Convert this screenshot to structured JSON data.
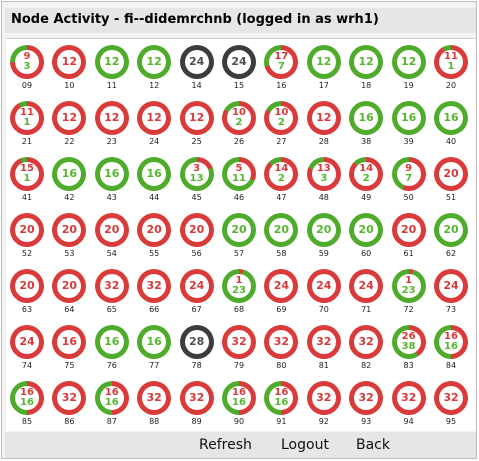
{
  "title": "Node Activity - fi--didemrchnb (logged in as wrh1)",
  "nav": {
    "refresh": "Refresh",
    "logout": "Logout",
    "back": "Back"
  },
  "colors": {
    "red": "#d93a3a",
    "green": "#56b632",
    "dark": "#505050",
    "ring_red": "#d93a3a",
    "ring_green": "#4fab2b",
    "ring_dark": "#3c3c3c"
  },
  "nodes": [
    {
      "id": "09",
      "total": 12,
      "a": 9,
      "b": 3,
      "used": 9,
      "type": "mix"
    },
    {
      "id": "10",
      "total": 12,
      "a": 12,
      "used": 12,
      "type": "red"
    },
    {
      "id": "11",
      "total": 12,
      "a": 12,
      "used": 0,
      "type": "green"
    },
    {
      "id": "12",
      "total": 12,
      "a": 12,
      "used": 0,
      "type": "green"
    },
    {
      "id": "14",
      "total": 24,
      "a": 24,
      "used": 0,
      "type": "dark"
    },
    {
      "id": "15",
      "total": 24,
      "a": 24,
      "used": 0,
      "type": "dark"
    },
    {
      "id": "16",
      "total": 24,
      "a": 17,
      "b": 7,
      "used": 17,
      "type": "mix"
    },
    {
      "id": "17",
      "total": 12,
      "a": 12,
      "used": 0,
      "type": "green"
    },
    {
      "id": "18",
      "total": 12,
      "a": 12,
      "used": 0,
      "type": "green"
    },
    {
      "id": "19",
      "total": 12,
      "a": 12,
      "used": 0,
      "type": "green"
    },
    {
      "id": "20",
      "total": 12,
      "a": 11,
      "b": 1,
      "used": 11,
      "type": "mix"
    },
    {
      "id": "21",
      "total": 12,
      "a": 11,
      "b": 1,
      "used": 11,
      "type": "mix"
    },
    {
      "id": "22",
      "total": 12,
      "a": 12,
      "used": 12,
      "type": "red"
    },
    {
      "id": "23",
      "total": 12,
      "a": 12,
      "used": 12,
      "type": "red"
    },
    {
      "id": "24",
      "total": 12,
      "a": 12,
      "used": 12,
      "type": "red"
    },
    {
      "id": "25",
      "total": 12,
      "a": 12,
      "used": 12,
      "type": "red"
    },
    {
      "id": "26",
      "total": 12,
      "a": 10,
      "b": 2,
      "used": 10,
      "type": "mix"
    },
    {
      "id": "27",
      "total": 12,
      "a": 10,
      "b": 2,
      "used": 10,
      "type": "mix"
    },
    {
      "id": "28",
      "total": 12,
      "a": 12,
      "used": 12,
      "type": "red"
    },
    {
      "id": "38",
      "total": 16,
      "a": 16,
      "used": 0,
      "type": "green"
    },
    {
      "id": "39",
      "total": 16,
      "a": 16,
      "used": 0,
      "type": "green"
    },
    {
      "id": "40",
      "total": 16,
      "a": 16,
      "used": 0,
      "type": "green"
    },
    {
      "id": "41",
      "total": 16,
      "a": 15,
      "b": 1,
      "used": 15,
      "type": "mix"
    },
    {
      "id": "42",
      "total": 16,
      "a": 16,
      "used": 0,
      "type": "green"
    },
    {
      "id": "43",
      "total": 16,
      "a": 16,
      "used": 0,
      "type": "green"
    },
    {
      "id": "44",
      "total": 16,
      "a": 16,
      "used": 0,
      "type": "green"
    },
    {
      "id": "45",
      "total": 16,
      "a": 3,
      "b": 13,
      "used": 3,
      "type": "mix"
    },
    {
      "id": "46",
      "total": 16,
      "a": 5,
      "b": 11,
      "used": 5,
      "type": "mix"
    },
    {
      "id": "47",
      "total": 16,
      "a": 14,
      "b": 2,
      "used": 14,
      "type": "mix"
    },
    {
      "id": "48",
      "total": 16,
      "a": 13,
      "b": 3,
      "used": 13,
      "type": "mix"
    },
    {
      "id": "49",
      "total": 16,
      "a": 14,
      "b": 2,
      "used": 14,
      "type": "mix"
    },
    {
      "id": "50",
      "total": 16,
      "a": 9,
      "b": 7,
      "used": 9,
      "type": "mix"
    },
    {
      "id": "51",
      "total": 20,
      "a": 20,
      "used": 20,
      "type": "red"
    },
    {
      "id": "52",
      "total": 20,
      "a": 20,
      "used": 20,
      "type": "red"
    },
    {
      "id": "53",
      "total": 20,
      "a": 20,
      "used": 20,
      "type": "red"
    },
    {
      "id": "54",
      "total": 20,
      "a": 20,
      "used": 20,
      "type": "red"
    },
    {
      "id": "55",
      "total": 20,
      "a": 20,
      "used": 20,
      "type": "red"
    },
    {
      "id": "56",
      "total": 20,
      "a": 20,
      "used": 20,
      "type": "red"
    },
    {
      "id": "57",
      "total": 20,
      "a": 20,
      "used": 0,
      "type": "green"
    },
    {
      "id": "58",
      "total": 20,
      "a": 20,
      "used": 0,
      "type": "green"
    },
    {
      "id": "59",
      "total": 20,
      "a": 20,
      "used": 0,
      "type": "green"
    },
    {
      "id": "60",
      "total": 20,
      "a": 20,
      "used": 0,
      "type": "green"
    },
    {
      "id": "61",
      "total": 20,
      "a": 20,
      "used": 20,
      "type": "red"
    },
    {
      "id": "62",
      "total": 20,
      "a": 20,
      "used": 0,
      "type": "green"
    },
    {
      "id": "63",
      "total": 20,
      "a": 20,
      "used": 20,
      "type": "red"
    },
    {
      "id": "64",
      "total": 20,
      "a": 20,
      "used": 20,
      "type": "red"
    },
    {
      "id": "65",
      "total": 32,
      "a": 32,
      "used": 32,
      "type": "red"
    },
    {
      "id": "66",
      "total": 32,
      "a": 32,
      "used": 32,
      "type": "red"
    },
    {
      "id": "67",
      "total": 24,
      "a": 24,
      "used": 24,
      "type": "red"
    },
    {
      "id": "68",
      "total": 24,
      "a": 1,
      "b": 23,
      "used": 1,
      "type": "mix"
    },
    {
      "id": "69",
      "total": 24,
      "a": 24,
      "used": 24,
      "type": "red"
    },
    {
      "id": "70",
      "total": 24,
      "a": 24,
      "used": 24,
      "type": "red"
    },
    {
      "id": "71",
      "total": 24,
      "a": 24,
      "used": 24,
      "type": "red"
    },
    {
      "id": "72",
      "total": 24,
      "a": 1,
      "b": 23,
      "used": 1,
      "type": "mix"
    },
    {
      "id": "73",
      "total": 24,
      "a": 24,
      "used": 24,
      "type": "red"
    },
    {
      "id": "74",
      "total": 24,
      "a": 24,
      "used": 24,
      "type": "red"
    },
    {
      "id": "75",
      "total": 16,
      "a": 16,
      "used": 16,
      "type": "red"
    },
    {
      "id": "76",
      "total": 16,
      "a": 16,
      "used": 0,
      "type": "green"
    },
    {
      "id": "77",
      "total": 16,
      "a": 16,
      "used": 0,
      "type": "green"
    },
    {
      "id": "78",
      "total": 28,
      "a": 28,
      "used": 0,
      "type": "dark"
    },
    {
      "id": "79",
      "total": 32,
      "a": 32,
      "used": 32,
      "type": "red"
    },
    {
      "id": "80",
      "total": 32,
      "a": 32,
      "used": 32,
      "type": "red"
    },
    {
      "id": "81",
      "total": 32,
      "a": 32,
      "used": 32,
      "type": "red"
    },
    {
      "id": "82",
      "total": 32,
      "a": 32,
      "used": 32,
      "type": "red"
    },
    {
      "id": "83",
      "total": 64,
      "a": 26,
      "b": 38,
      "used": 26,
      "type": "mix"
    },
    {
      "id": "84",
      "total": 32,
      "a": 16,
      "b": 16,
      "used": 16,
      "type": "mix"
    },
    {
      "id": "85",
      "total": 32,
      "a": 16,
      "b": 16,
      "used": 16,
      "type": "mix"
    },
    {
      "id": "86",
      "total": 32,
      "a": 32,
      "used": 32,
      "type": "red"
    },
    {
      "id": "87",
      "total": 32,
      "a": 16,
      "b": 16,
      "used": 16,
      "type": "mix"
    },
    {
      "id": "88",
      "total": 32,
      "a": 32,
      "used": 32,
      "type": "red"
    },
    {
      "id": "89",
      "total": 32,
      "a": 32,
      "used": 32,
      "type": "red"
    },
    {
      "id": "90",
      "total": 32,
      "a": 16,
      "b": 16,
      "used": 16,
      "type": "mix"
    },
    {
      "id": "91",
      "total": 32,
      "a": 16,
      "b": 16,
      "used": 16,
      "type": "mix"
    },
    {
      "id": "92",
      "total": 32,
      "a": 32,
      "used": 32,
      "type": "red"
    },
    {
      "id": "93",
      "total": 32,
      "a": 32,
      "used": 32,
      "type": "red"
    },
    {
      "id": "94",
      "total": 32,
      "a": 32,
      "used": 32,
      "type": "red"
    },
    {
      "id": "95",
      "total": 32,
      "a": 32,
      "used": 32,
      "type": "red"
    }
  ]
}
